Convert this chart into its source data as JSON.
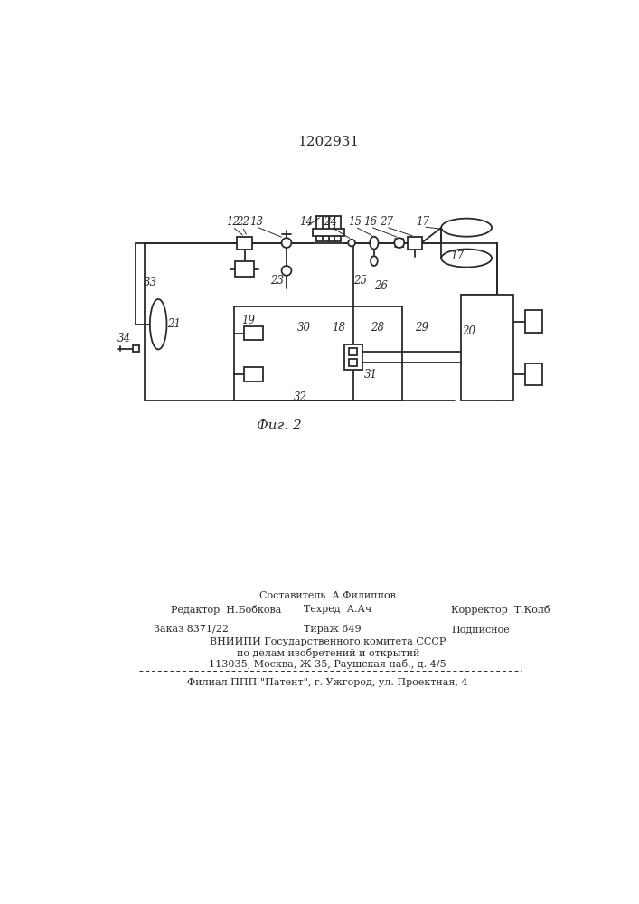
{
  "title": "1202931",
  "fig_label": "Фиг. 2",
  "bg_color": "#ffffff",
  "line_color": "#2a2a2a",
  "footer": {
    "sostavitel": "Составитель  А.Филиппов",
    "redaktor": "Редактор  Н.Бобкова",
    "tehred": "Техред  А.Ач",
    "korrektor": "Корректор  Т.Колб",
    "zakaz": "Заказ 8371/22",
    "tirazh": "Тираж 649",
    "podpisnoe": "Подписное",
    "vniip1": "ВНИИПИ Государственного комитета СССР",
    "vniip2": "по делам изобретений и открытий",
    "addr": "113035, Москва, Ж-35, Раушская наб., д. 4/5",
    "filial": "Филиал ППП \"Патент\", г. Ужгород, ул. Проектная, 4"
  }
}
